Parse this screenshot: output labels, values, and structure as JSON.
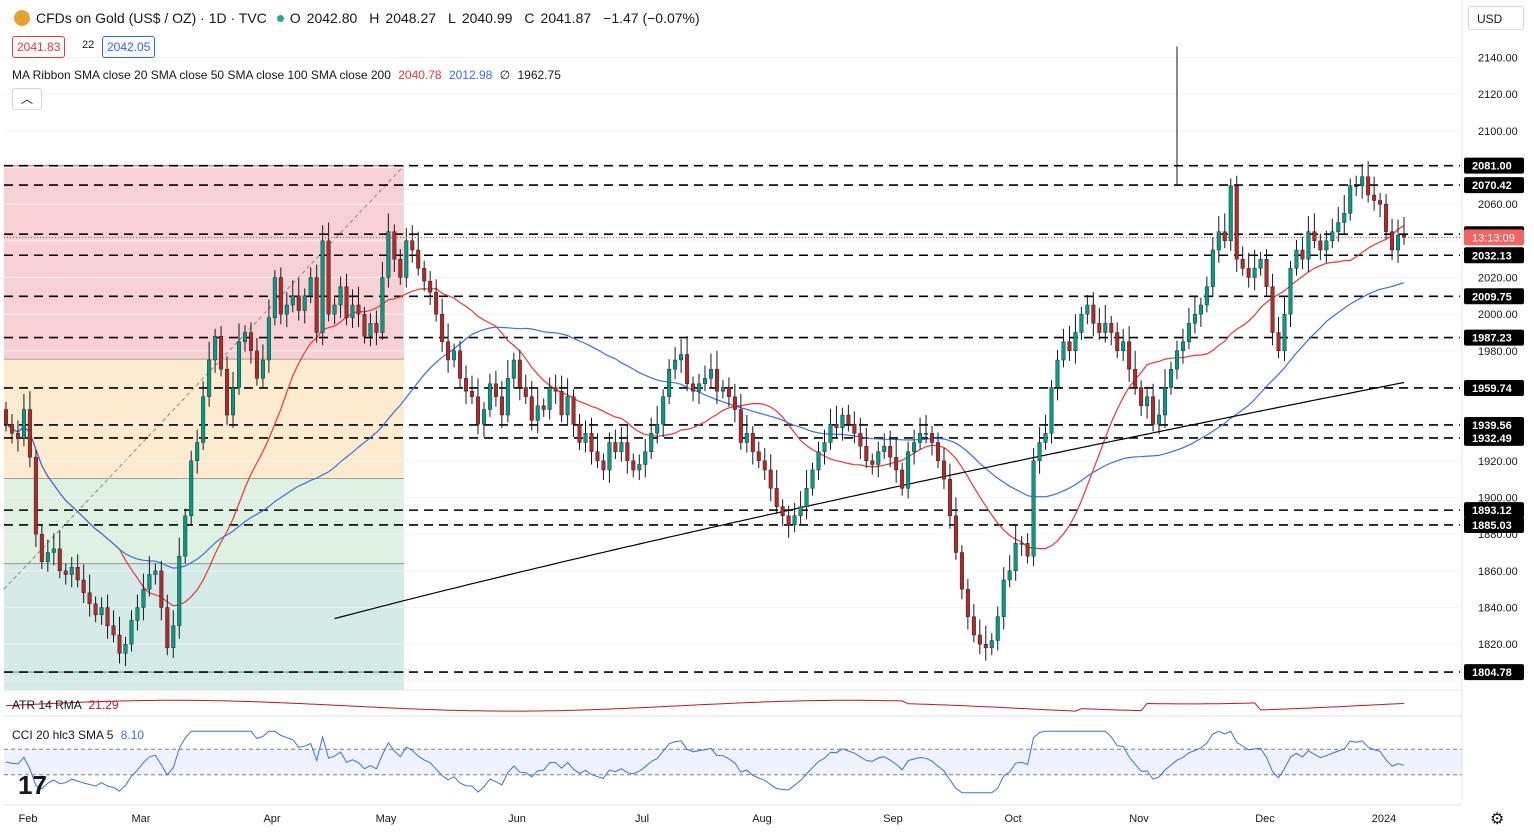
{
  "header": {
    "symbol_title": "CFDs on Gold (US$ / OZ) · 1D · TVC",
    "ohlc": [
      {
        "k": "O",
        "v": "2042.80"
      },
      {
        "k": "H",
        "v": "2048.27"
      },
      {
        "k": "L",
        "v": "2040.99"
      },
      {
        "k": "C",
        "v": "2041.87"
      }
    ],
    "change": "−1.47 (−0.07%)",
    "bid": "2041.83",
    "spread": "22",
    "ask": "2042.05",
    "currency": "USD"
  },
  "indicators": {
    "ma_ribbon_label": "MA Ribbon SMA close 20 SMA close 50 SMA close 100 SMA close 200",
    "ma_values": [
      {
        "v": "2040.78",
        "color": "#e53935"
      },
      {
        "v": "2012.98",
        "color": "#3d6fe0"
      },
      {
        "v": "∅",
        "color": "#131722"
      },
      {
        "v": "1962.75",
        "color": "#131722"
      }
    ],
    "atr_label": "ATR 14 RMA",
    "atr_value": "21.29",
    "cci_label": "CCI 20 hlc3 SMA 5",
    "cci_value": "8.10"
  },
  "colors": {
    "up": "#089981",
    "down": "#b02a2a",
    "sma20": "#e53935",
    "sma50": "#3d6fe0",
    "sma200": "#000000",
    "atr": "#b71c1c",
    "cci": "#3d6fe0",
    "countdown_bg": "#f06464"
  },
  "chart_data": {
    "type": "candlestick",
    "symbol": "CFDs on Gold (US$ / OZ)",
    "timeframe": "1D",
    "ylim": [
      1795,
      2155
    ],
    "y_ticks": [
      1800,
      1820,
      1840,
      1860,
      1880,
      1900,
      1920,
      1940,
      1960,
      1980,
      2000,
      2020,
      2040,
      2060,
      2080,
      2100,
      2120,
      2140
    ],
    "x_ticks": [
      "Feb",
      "Mar",
      "Apr",
      "May",
      "Jun",
      "Jul",
      "Aug",
      "Sep",
      "Oct",
      "Nov",
      "Dec",
      "2024"
    ],
    "horizontal_levels": [
      2081.0,
      2070.42,
      2043.61,
      2032.13,
      2009.75,
      1987.23,
      1959.74,
      1939.56,
      1932.49,
      1893.12,
      1885.03,
      1804.78
    ],
    "current_price_countdown": "13:13:09",
    "fib_retracement": {
      "high": 2081.0,
      "low": 1804.78
    },
    "close_series": [
      1940,
      1935,
      1932,
      1948,
      1922,
      1880,
      1865,
      1870,
      1872,
      1860,
      1858,
      1862,
      1855,
      1848,
      1842,
      1836,
      1840,
      1830,
      1825,
      1815,
      1820,
      1833,
      1840,
      1850,
      1858,
      1860,
      1840,
      1818,
      1830,
      1868,
      1890,
      1920,
      1930,
      1955,
      1975,
      1988,
      1970,
      1945,
      1960,
      1985,
      1990,
      1980,
      1965,
      1975,
      1998,
      2020,
      2000,
      2005,
      2010,
      2002,
      2010,
      2020,
      1990,
      2040,
      2000,
      2005,
      2015,
      1998,
      2005,
      2000,
      1988,
      1995,
      1990,
      2020,
      2045,
      2030,
      2020,
      2040,
      2035,
      2025,
      2018,
      2012,
      2000,
      1985,
      1975,
      1980,
      1965,
      1958,
      1955,
      1940,
      1948,
      1962,
      1955,
      1945,
      1965,
      1975,
      1960,
      1955,
      1942,
      1950,
      1948,
      1960,
      1958,
      1945,
      1955,
      1940,
      1930,
      1935,
      1925,
      1920,
      1915,
      1930,
      1925,
      1930,
      1920,
      1915,
      1918,
      1925,
      1935,
      1940,
      1955,
      1970,
      1975,
      1978,
      1962,
      1958,
      1962,
      1965,
      1970,
      1958,
      1960,
      1955,
      1948,
      1930,
      1935,
      1925,
      1920,
      1915,
      1905,
      1895,
      1890,
      1885,
      1890,
      1895,
      1905,
      1915,
      1925,
      1930,
      1940,
      1938,
      1945,
      1940,
      1935,
      1928,
      1920,
      1918,
      1925,
      1928,
      1922,
      1915,
      1905,
      1925,
      1930,
      1935,
      1935,
      1930,
      1920,
      1910,
      1890,
      1870,
      1850,
      1835,
      1825,
      1820,
      1818,
      1822,
      1835,
      1855,
      1860,
      1875,
      1875,
      1868,
      1920,
      1930,
      1935,
      1960,
      1975,
      1985,
      1980,
      1990,
      2000,
      2005,
      1995,
      1990,
      1995,
      1990,
      1980,
      1985,
      1970,
      1960,
      1950,
      1955,
      1940,
      1945,
      1960,
      1970,
      1980,
      1985,
      1995,
      2000,
      2005,
      2015,
      2035,
      2045,
      2040,
      2070,
      2030,
      2025,
      2020,
      2025,
      2030,
      2015,
      1990,
      1980,
      2000,
      2025,
      2035,
      2030,
      2045,
      2040,
      2035,
      2040,
      2045,
      2050,
      2055,
      2070,
      2070,
      2075,
      2065,
      2062,
      2060,
      2045,
      2035,
      2043,
      2041.87
    ]
  }
}
